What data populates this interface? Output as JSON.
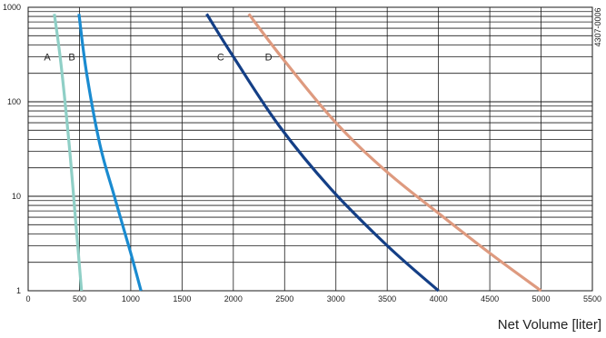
{
  "chart_data": {
    "type": "line",
    "title": "",
    "xlabel": "Net Volume [liter]",
    "ylabel": "",
    "xlim": [
      0,
      5500
    ],
    "ylim": [
      1,
      1000
    ],
    "y_scale": "log",
    "grid": true,
    "x_ticks": [
      "0",
      "500",
      "1000",
      "1500",
      "2000",
      "2500",
      "3000",
      "3500",
      "4000",
      "4500",
      "5000",
      "5500"
    ],
    "y_ticks": [
      "1",
      "10",
      "100",
      "1000"
    ],
    "document_code": "4307-0006",
    "series": [
      {
        "name": "A",
        "color": "#8fcfc6",
        "points": [
          [
            255,
            850
          ],
          [
            320,
            250
          ],
          [
            400,
            35
          ],
          [
            460,
            6
          ],
          [
            520,
            1
          ]
        ]
      },
      {
        "name": "B",
        "color": "#1a8bd0",
        "points": [
          [
            495,
            850
          ],
          [
            570,
            200
          ],
          [
            700,
            35
          ],
          [
            840,
            10
          ],
          [
            1000,
            2.5
          ],
          [
            1100,
            1
          ]
        ]
      },
      {
        "name": "C",
        "color": "#143f86",
        "points": [
          [
            1740,
            850
          ],
          [
            2000,
            300
          ],
          [
            2450,
            55
          ],
          [
            2950,
            12
          ],
          [
            3500,
            3
          ],
          [
            4000,
            1
          ]
        ]
      },
      {
        "name": "D",
        "color": "#de9a7f",
        "points": [
          [
            2150,
            850
          ],
          [
            2500,
            270
          ],
          [
            3000,
            60
          ],
          [
            3500,
            18
          ],
          [
            4050,
            6
          ],
          [
            4500,
            2.5
          ],
          [
            5000,
            1
          ]
        ]
      }
    ]
  }
}
